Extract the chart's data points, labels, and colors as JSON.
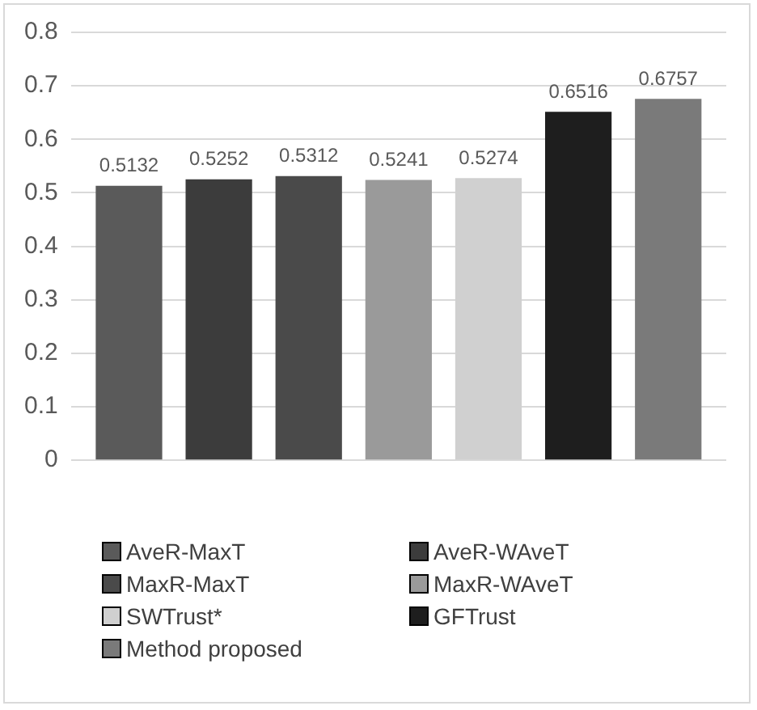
{
  "chart_data": {
    "type": "bar",
    "categories": [
      null
    ],
    "series": [
      {
        "name": "AveR-MaxT",
        "color": "#5a5a5a",
        "values": [
          0.5132
        ]
      },
      {
        "name": "AveR-WAveT",
        "color": "#3c3c3c",
        "values": [
          0.5252
        ]
      },
      {
        "name": "MaxR-MaxT",
        "color": "#4a4a4a",
        "values": [
          0.5312
        ]
      },
      {
        "name": "MaxR-WAveT",
        "color": "#9a9a9a",
        "values": [
          0.5241
        ]
      },
      {
        "name": "SWTrust*",
        "color": "#d0d0d0",
        "values": [
          0.5274
        ]
      },
      {
        "name": "GFTrust",
        "color": "#1e1e1e",
        "values": [
          0.6516
        ]
      },
      {
        "name": "Method proposed",
        "color": "#7a7a7a",
        "values": [
          0.6757
        ]
      }
    ],
    "ylim": [
      0,
      0.8
    ],
    "yticks": [
      0,
      0.1,
      0.2,
      0.3,
      0.4,
      0.5,
      0.6,
      0.7,
      0.8
    ],
    "grid": "y",
    "legend": "bottom",
    "data_labels": true
  }
}
